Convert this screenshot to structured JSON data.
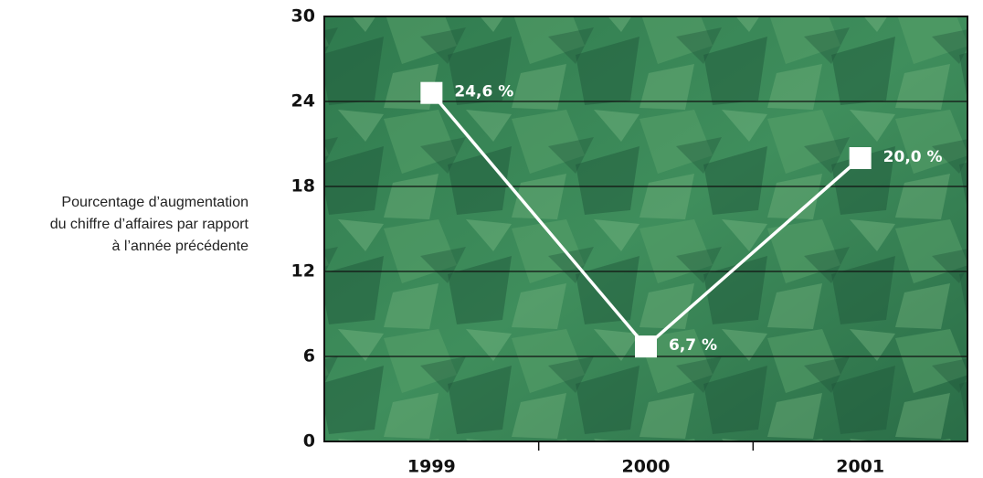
{
  "chart_data": {
    "type": "line",
    "ylabel": [
      "Pourcentage d’augmentation",
      "du chiffre d’affaires par rapport",
      "à l’année précédente"
    ],
    "categories": [
      "1999",
      "2000",
      "2001"
    ],
    "values": [
      24.6,
      6.7,
      20.0
    ],
    "value_labels": [
      "24,6 %",
      "6,7 %",
      "20,0 %"
    ],
    "color": "#ffffff",
    "ylim": [
      0,
      30
    ],
    "yticks": [
      0,
      6,
      12,
      18,
      24,
      30
    ],
    "grid": true
  }
}
